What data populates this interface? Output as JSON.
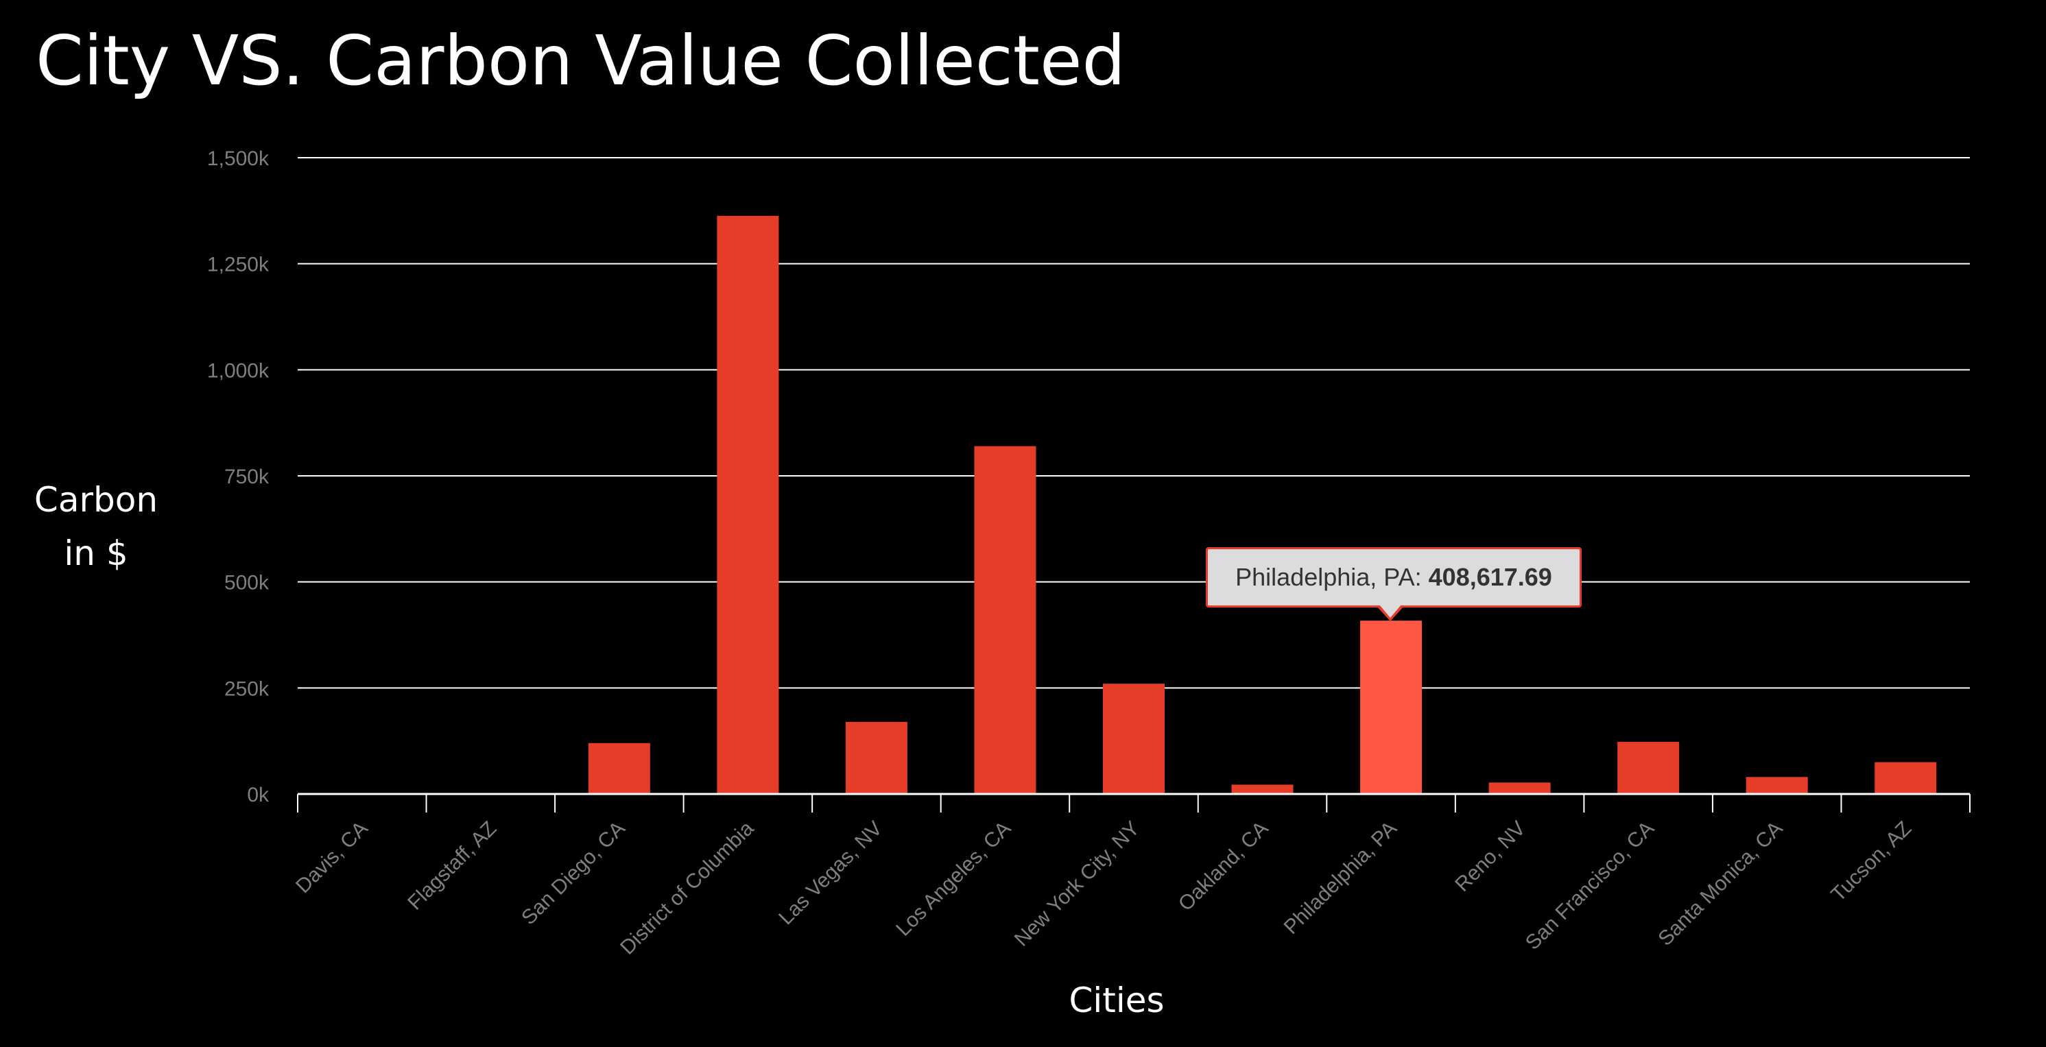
{
  "chart_data": {
    "type": "bar",
    "title": "City VS. Carbon Value Collected",
    "xlabel": "Cities",
    "ylabel": "Carbon\nin $",
    "ylim": [
      0,
      1500000
    ],
    "y_ticks": [
      {
        "value": 0,
        "label": "0k"
      },
      {
        "value": 250000,
        "label": "250k"
      },
      {
        "value": 500000,
        "label": "500k"
      },
      {
        "value": 750000,
        "label": "750k"
      },
      {
        "value": 1000000,
        "label": "1,000k"
      },
      {
        "value": 1250000,
        "label": "1,250k"
      },
      {
        "value": 1500000,
        "label": "1,500k"
      }
    ],
    "grid": true,
    "categories": [
      "Davis, CA",
      "Flagstaff, AZ",
      "San Diego, CA",
      "District of Columbia",
      "Las Vegas, NV",
      "Los Angeles, CA",
      "New York City, NY",
      "Oakland, CA",
      "Philadelphia, PA",
      "Reno, NV",
      "San Francisco, CA",
      "Santa Monica, CA",
      "Tucson, AZ"
    ],
    "values": [
      0,
      0,
      120000,
      1363000,
      170000,
      820000,
      260000,
      22000,
      408617.69,
      27000,
      123000,
      40000,
      75000
    ],
    "colors": {
      "bar": "#e53d28",
      "bar_hover": "#fe5743",
      "grid": "#ffffff",
      "tick_label": "#7f7f7f"
    },
    "tooltip": {
      "category": "Philadelphia, PA",
      "label": "Philadelphia, PA: ",
      "value": "408,617.69"
    }
  }
}
